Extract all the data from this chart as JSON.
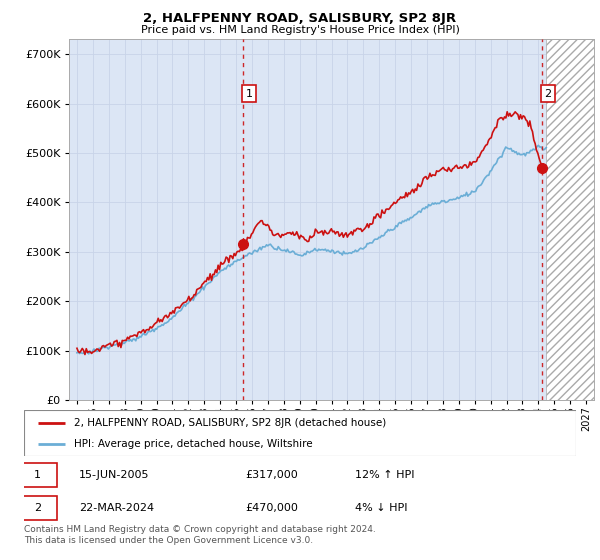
{
  "title": "2, HALFPENNY ROAD, SALISBURY, SP2 8JR",
  "subtitle": "Price paid vs. HM Land Registry's House Price Index (HPI)",
  "legend_line1": "2, HALFPENNY ROAD, SALISBURY, SP2 8JR (detached house)",
  "legend_line2": "HPI: Average price, detached house, Wiltshire",
  "sale1_date": "15-JUN-2005",
  "sale1_price": "£317,000",
  "sale1_hpi": "12% ↑ HPI",
  "sale2_date": "22-MAR-2024",
  "sale2_price": "£470,000",
  "sale2_hpi": "4% ↓ HPI",
  "copyright": "Contains HM Land Registry data © Crown copyright and database right 2024.\nThis data is licensed under the Open Government Licence v3.0.",
  "hpi_color": "#6baed6",
  "price_color": "#cc1111",
  "vline_color": "#cc1111",
  "grid_color": "#c8d4e8",
  "plot_bg": "#dce6f5",
  "ylim": [
    0,
    730000
  ],
  "yticks": [
    0,
    100000,
    200000,
    300000,
    400000,
    500000,
    600000,
    700000
  ],
  "sale1_x": 2005.46,
  "sale1_y": 317000,
  "sale2_x": 2024.22,
  "sale2_y": 470000,
  "hatch_start": 2024.5,
  "xmin": 1994.5,
  "xmax": 2027.5
}
